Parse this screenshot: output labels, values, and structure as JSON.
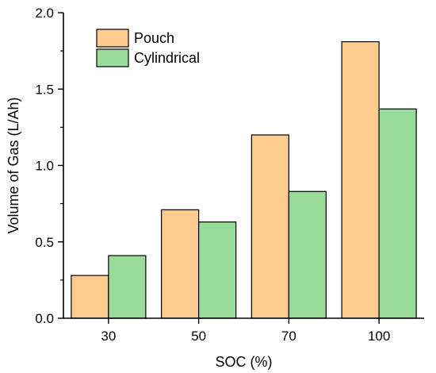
{
  "chart_data": {
    "type": "bar",
    "categories": [
      "30",
      "50",
      "70",
      "100"
    ],
    "series": [
      {
        "name": "Pouch",
        "values": [
          0.28,
          0.71,
          1.2,
          1.81
        ],
        "color": "#fdcc8e"
      },
      {
        "name": "Cylindrical",
        "values": [
          0.41,
          0.63,
          0.83,
          1.37
        ],
        "color": "#99dc9a"
      }
    ],
    "xlabel": "SOC (%)",
    "ylabel": "Volume of Gas (L/Ah)",
    "ylim": [
      0,
      2.0
    ],
    "yticks": [
      "0.0",
      "0.5",
      "1.0",
      "1.5",
      "2.0"
    ],
    "grid": false,
    "legend_position": "top-left"
  }
}
